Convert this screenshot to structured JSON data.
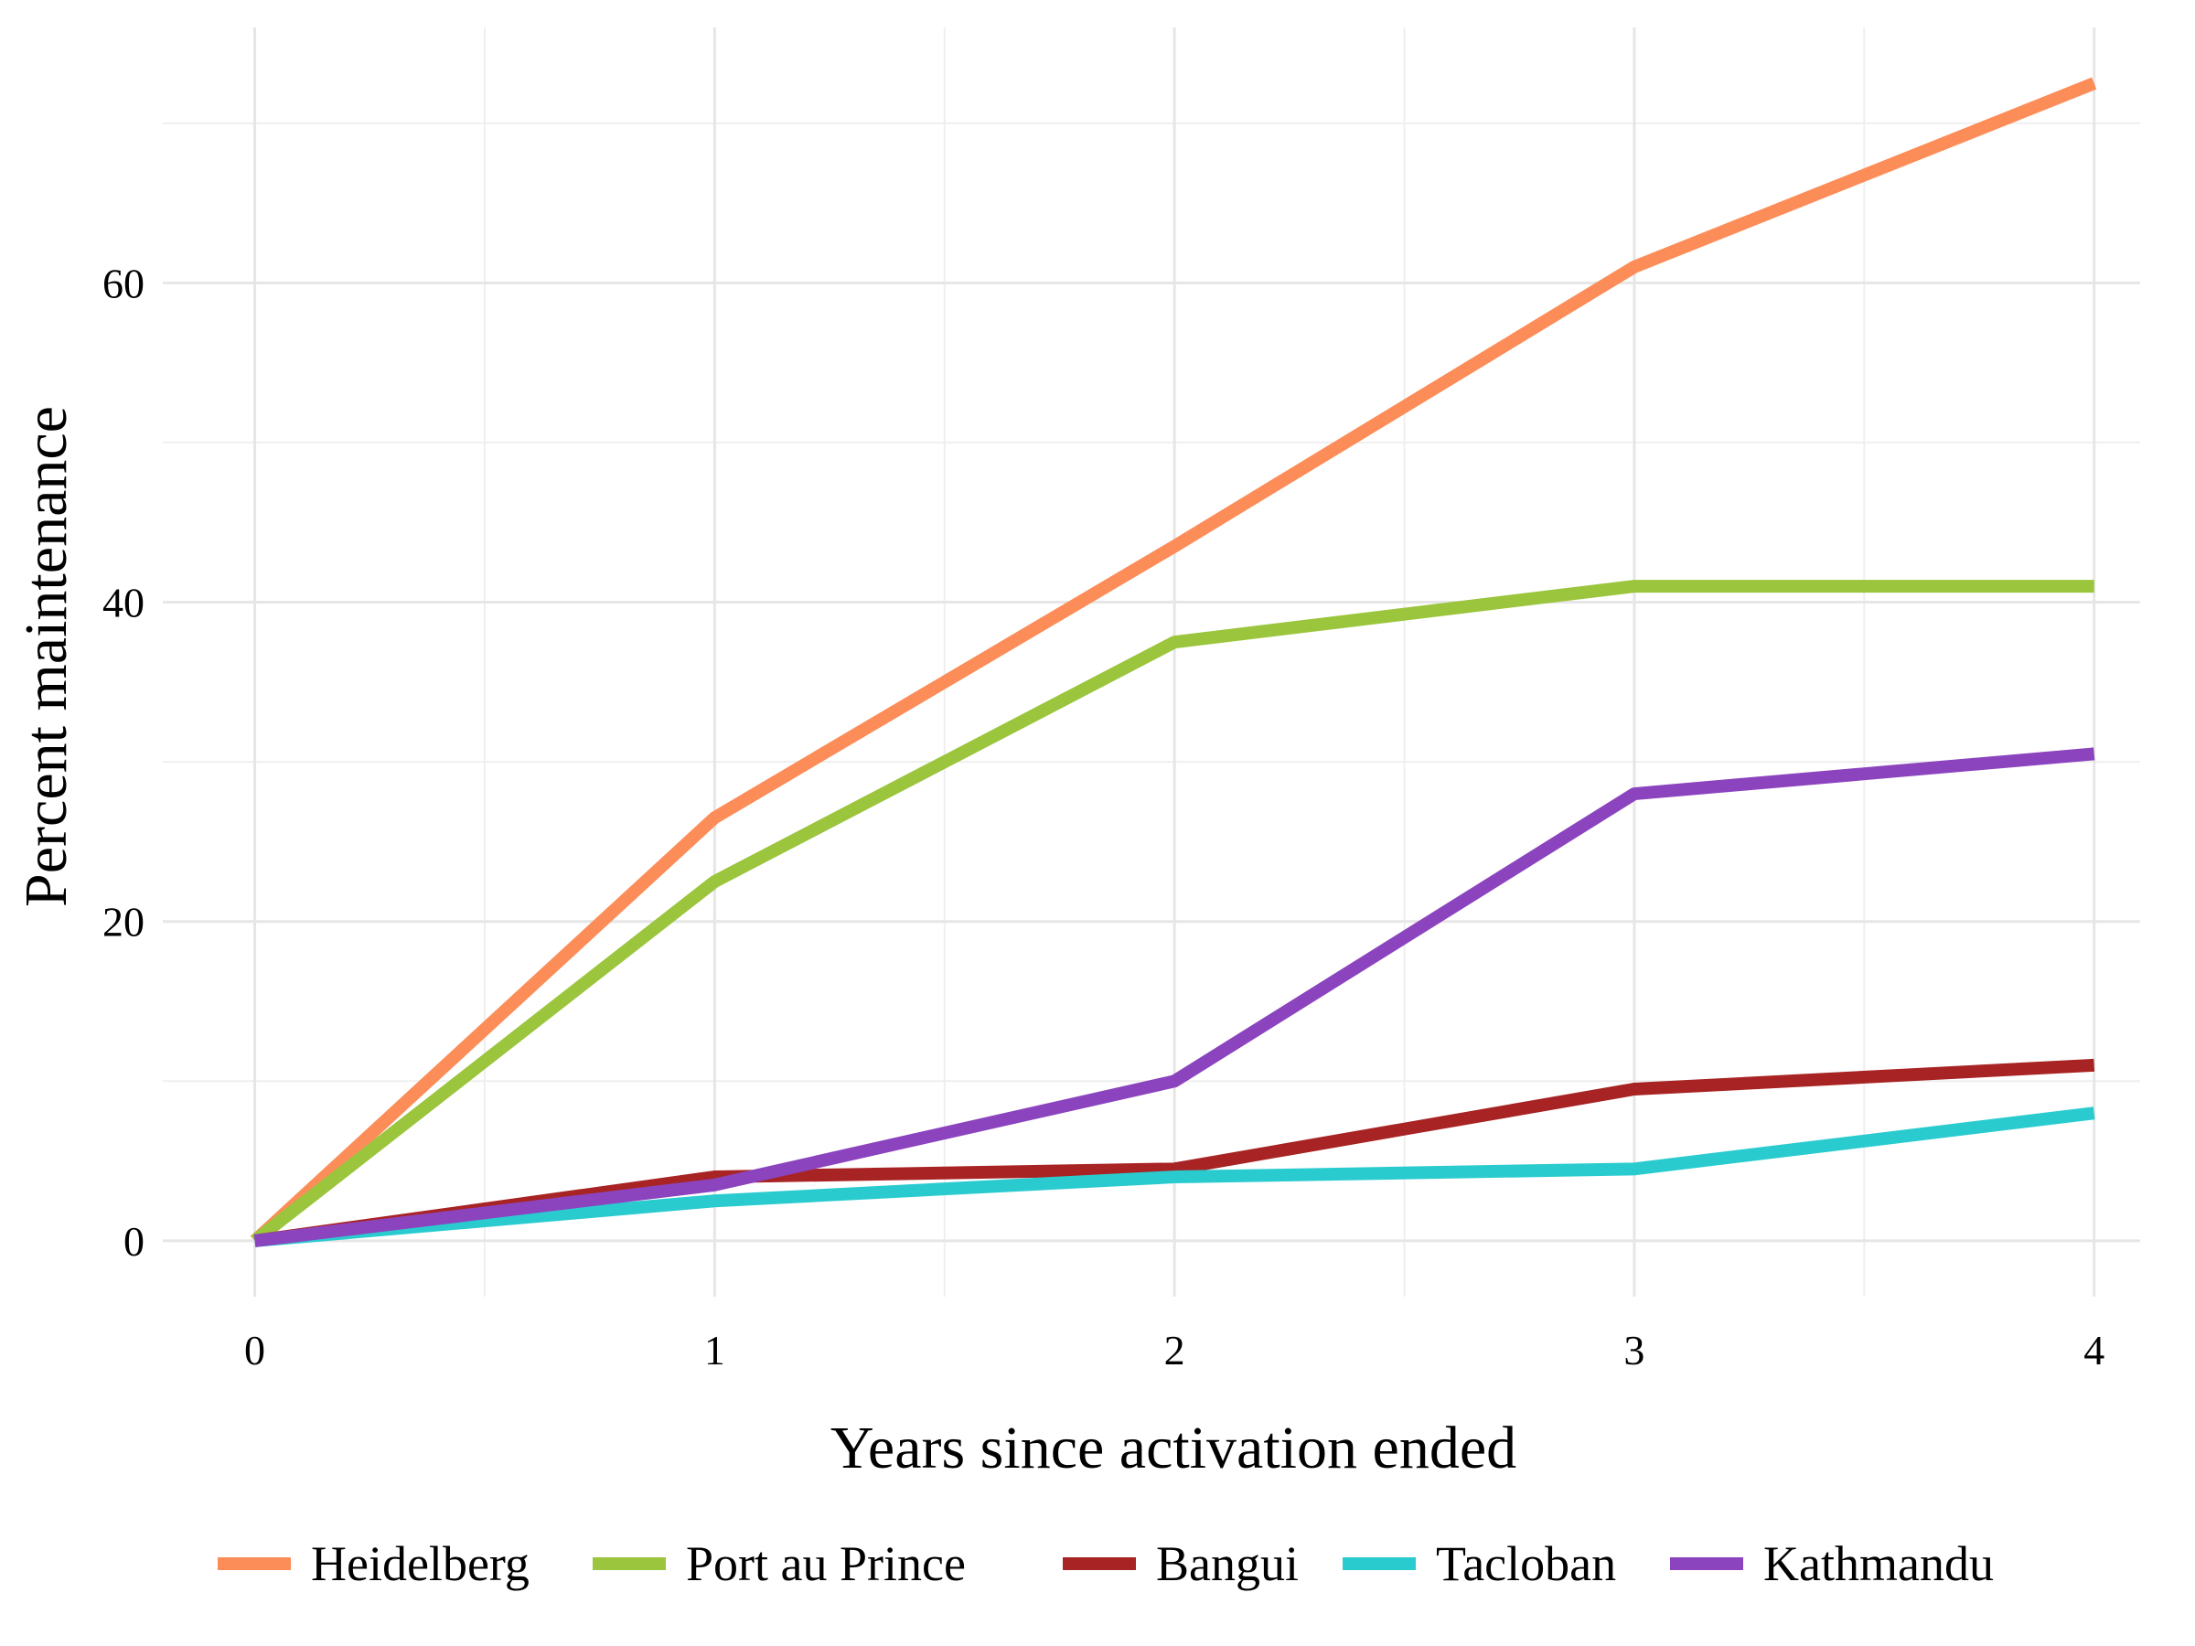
{
  "chart_data": {
    "type": "line",
    "title": "",
    "xlabel": "Years since activation ended",
    "ylabel": "Percent maintenance",
    "x": [
      0,
      1,
      2,
      3,
      4
    ],
    "x_ticks": [
      "0",
      "1",
      "2",
      "3",
      "4"
    ],
    "y_ticks": [
      "0",
      "20",
      "40",
      "60"
    ],
    "xlim": [
      -0.2,
      4.1
    ],
    "ylim": [
      -3.5,
      76
    ],
    "grid": true,
    "legend_position": "bottom",
    "series": [
      {
        "name": "Heidelberg",
        "color": "#FC8D59",
        "values": [
          0,
          26.5,
          43.5,
          61,
          72.5
        ]
      },
      {
        "name": "Port au Prince",
        "color": "#9BC53D",
        "values": [
          0,
          22.5,
          37.5,
          41,
          41
        ]
      },
      {
        "name": "Bangui",
        "color": "#A82323",
        "values": [
          0,
          4,
          4.5,
          9.5,
          11
        ]
      },
      {
        "name": "Tacloban",
        "color": "#2ACBCF",
        "values": [
          0,
          2.5,
          4,
          4.5,
          8
        ]
      },
      {
        "name": "Kathmandu",
        "color": "#8B44BE",
        "values": [
          0,
          3.5,
          10,
          28,
          30.5
        ]
      }
    ]
  }
}
